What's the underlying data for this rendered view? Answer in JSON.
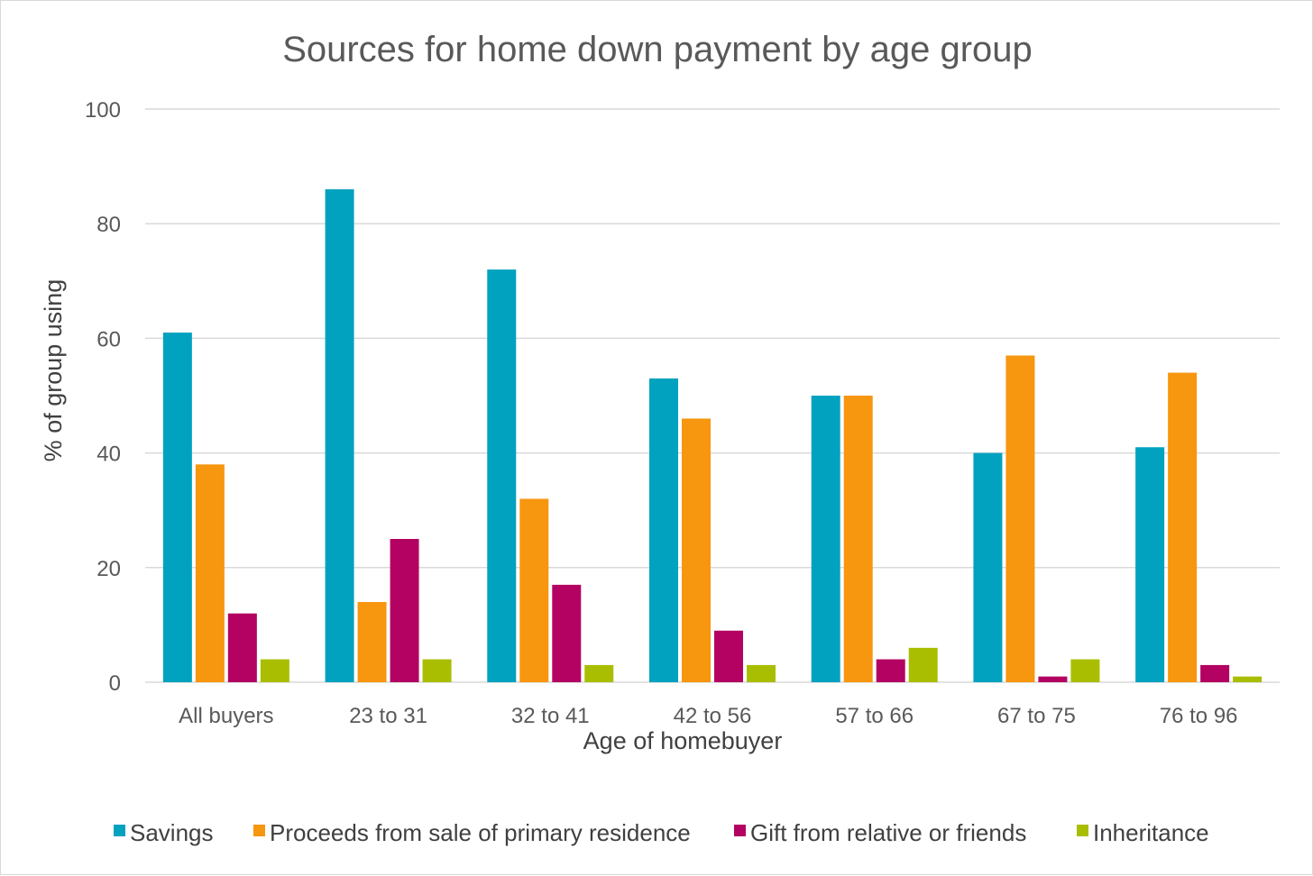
{
  "chart_data": {
    "type": "bar",
    "title": "Sources for home down payment by age group",
    "xlabel": "Age of homebuyer",
    "ylabel": "% of group using",
    "ylim": [
      0,
      100
    ],
    "yticks": [
      0,
      20,
      40,
      60,
      80,
      100
    ],
    "grid": true,
    "legend_position": "bottom",
    "categories": [
      "All buyers",
      "23 to 31",
      "32 to 41",
      "42 to 56",
      "57 to 66",
      "67 to 75",
      "76 to 96"
    ],
    "series": [
      {
        "name": "Savings",
        "color": "#00a2bf",
        "values": [
          61,
          86,
          72,
          53,
          50,
          40,
          41
        ]
      },
      {
        "name": "Proceeds from sale of primary residence",
        "color": "#f7960f",
        "values": [
          38,
          14,
          32,
          46,
          50,
          57,
          54
        ]
      },
      {
        "name": "Gift from relative or friends",
        "color": "#b30261",
        "values": [
          12,
          25,
          17,
          9,
          4,
          1,
          3
        ]
      },
      {
        "name": "Inheritance",
        "color": "#a9be00",
        "values": [
          4,
          4,
          3,
          3,
          6,
          4,
          1
        ]
      }
    ]
  }
}
